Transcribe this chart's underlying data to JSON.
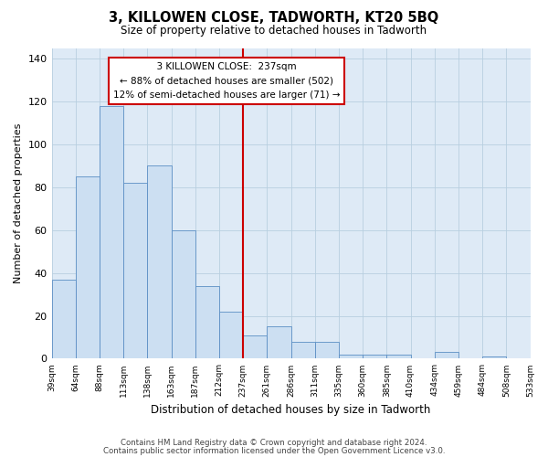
{
  "title": "3, KILLOWEN CLOSE, TADWORTH, KT20 5BQ",
  "subtitle": "Size of property relative to detached houses in Tadworth",
  "xlabel": "Distribution of detached houses by size in Tadworth",
  "ylabel": "Number of detached properties",
  "bin_labels": [
    "39sqm",
    "64sqm",
    "88sqm",
    "113sqm",
    "138sqm",
    "163sqm",
    "187sqm",
    "212sqm",
    "237sqm",
    "261sqm",
    "286sqm",
    "311sqm",
    "335sqm",
    "360sqm",
    "385sqm",
    "410sqm",
    "434sqm",
    "459sqm",
    "484sqm",
    "508sqm",
    "533sqm"
  ],
  "bar_heights": [
    37,
    85,
    118,
    82,
    90,
    60,
    34,
    22,
    11,
    15,
    8,
    8,
    2,
    2,
    2,
    0,
    3,
    0,
    1,
    0
  ],
  "bar_color": "#ccdff2",
  "bar_edge_color": "#5b8ec4",
  "vline_x_index": 8,
  "vline_color": "#cc0000",
  "ylim": [
    0,
    145
  ],
  "yticks": [
    0,
    20,
    40,
    60,
    80,
    100,
    120,
    140
  ],
  "annotation_title": "3 KILLOWEN CLOSE:  237sqm",
  "annotation_line1": "← 88% of detached houses are smaller (502)",
  "annotation_line2": "12% of semi-detached houses are larger (71) →",
  "annotation_box_color": "#ffffff",
  "annotation_box_edge": "#cc0000",
  "footnote1": "Contains HM Land Registry data © Crown copyright and database right 2024.",
  "footnote2": "Contains public sector information licensed under the Open Government Licence v3.0.",
  "grid_color": "#b8cfe0",
  "bg_color": "#deeaf6"
}
